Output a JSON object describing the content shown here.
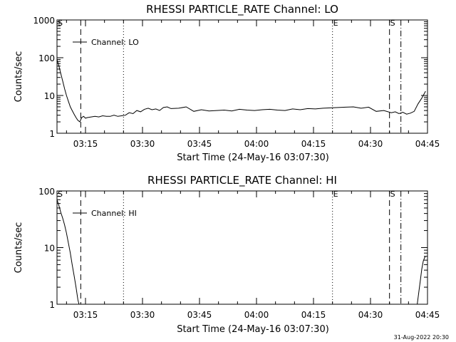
{
  "stamp": "31-Aug-2022 20:30",
  "marker_labels": {
    "left": "S",
    "E": "E",
    "S": "S"
  },
  "chart_data": [
    {
      "type": "line",
      "title": "RHESSI PARTICLE_RATE Channel: LO",
      "xlabel": "Start Time (24-May-16 03:07:30)",
      "ylabel": "Counts/sec",
      "log_y": true,
      "ylim": [
        1,
        1000
      ],
      "xlim_min_from_start": [
        0,
        97.5
      ],
      "x_tick_labels": [
        "03:15",
        "03:30",
        "03:45",
        "04:00",
        "04:15",
        "04:30",
        "04:45"
      ],
      "y_tick_labels": [
        "1",
        "10",
        "100",
        "1000"
      ],
      "legend": "Channel: LO",
      "vlines": [
        {
          "time": "03:13:45",
          "style": "dashed"
        },
        {
          "time": "03:25:00",
          "style": "dotted"
        },
        {
          "time": "04:20:00",
          "style": "dotted"
        },
        {
          "time": "04:35:00",
          "style": "dashed"
        },
        {
          "time": "04:38:00",
          "style": "dashdot"
        }
      ],
      "series": [
        {
          "name": "Channel: LO",
          "x_min": [
            0,
            0.5,
            1,
            1.5,
            2,
            2.5,
            3,
            3.5,
            4,
            4.5,
            5,
            5.5,
            6,
            6.5,
            7,
            7.5,
            8,
            9,
            10,
            11,
            12,
            13,
            14,
            15,
            16,
            17,
            18,
            19,
            20,
            21,
            22,
            23,
            24,
            25,
            26,
            27,
            28,
            29,
            30,
            32,
            34,
            36,
            38,
            40,
            42,
            44,
            46,
            48,
            50,
            52,
            54,
            56,
            58,
            60,
            62,
            64,
            66,
            68,
            70,
            72,
            74,
            76,
            78,
            80,
            82,
            84,
            86,
            88,
            89,
            90,
            91,
            92,
            93,
            94,
            95,
            96,
            97
          ],
          "values": [
            90,
            60,
            38,
            24,
            15,
            10,
            7,
            5,
            4,
            3.2,
            2.6,
            2.2,
            2.0,
            2.6,
            2.8,
            2.5,
            2.6,
            2.7,
            2.8,
            2.7,
            2.9,
            2.8,
            2.8,
            3.0,
            2.8,
            2.9,
            3.0,
            3.5,
            3.3,
            4.0,
            3.7,
            4.3,
            4.6,
            4.2,
            4.4,
            4.0,
            4.8,
            5.0,
            4.5,
            4.6,
            5.0,
            3.8,
            4.2,
            3.9,
            4.0,
            4.1,
            3.9,
            4.3,
            4.1,
            4.0,
            4.2,
            4.3,
            4.1,
            4.0,
            4.4,
            4.2,
            4.5,
            4.4,
            4.6,
            4.7,
            4.8,
            4.9,
            5.0,
            4.6,
            4.9,
            3.8,
            4.0,
            3.5,
            3.7,
            3.3,
            3.6,
            3.2,
            3.4,
            3.8,
            6.0,
            8.5,
            13
          ]
        }
      ]
    },
    {
      "type": "line",
      "title": "RHESSI PARTICLE_RATE Channel: HI",
      "xlabel": "Start Time (24-May-16 03:07:30)",
      "ylabel": "Counts/sec",
      "log_y": true,
      "ylim": [
        1,
        100
      ],
      "xlim_min_from_start": [
        0,
        97.5
      ],
      "x_tick_labels": [
        "03:15",
        "03:30",
        "03:45",
        "04:00",
        "04:15",
        "04:30",
        "04:45"
      ],
      "y_tick_labels": [
        "1",
        "10",
        "100"
      ],
      "legend": "Channel: HI",
      "vlines": [
        {
          "time": "03:13:45",
          "style": "dashed"
        },
        {
          "time": "03:25:00",
          "style": "dotted"
        },
        {
          "time": "04:20:00",
          "style": "dotted"
        },
        {
          "time": "04:35:00",
          "style": "dashed"
        },
        {
          "time": "04:38:00",
          "style": "dashdot"
        }
      ],
      "series": [
        {
          "name": "Channel: HI",
          "x_min": [
            0,
            0.5,
            1,
            1.5,
            2,
            2.5,
            3,
            3.5,
            4,
            4.5,
            5,
            5.5,
            5.8,
            94.8,
            95.2,
            95.6,
            96.0,
            96.4,
            96.8,
            97.0
          ],
          "values": [
            70,
            55,
            42,
            33,
            25,
            18,
            12,
            8,
            5,
            3.2,
            2,
            1.2,
            1.0,
            1.0,
            1.6,
            2.6,
            4.2,
            5.8,
            6.8,
            7.0
          ]
        }
      ]
    }
  ]
}
